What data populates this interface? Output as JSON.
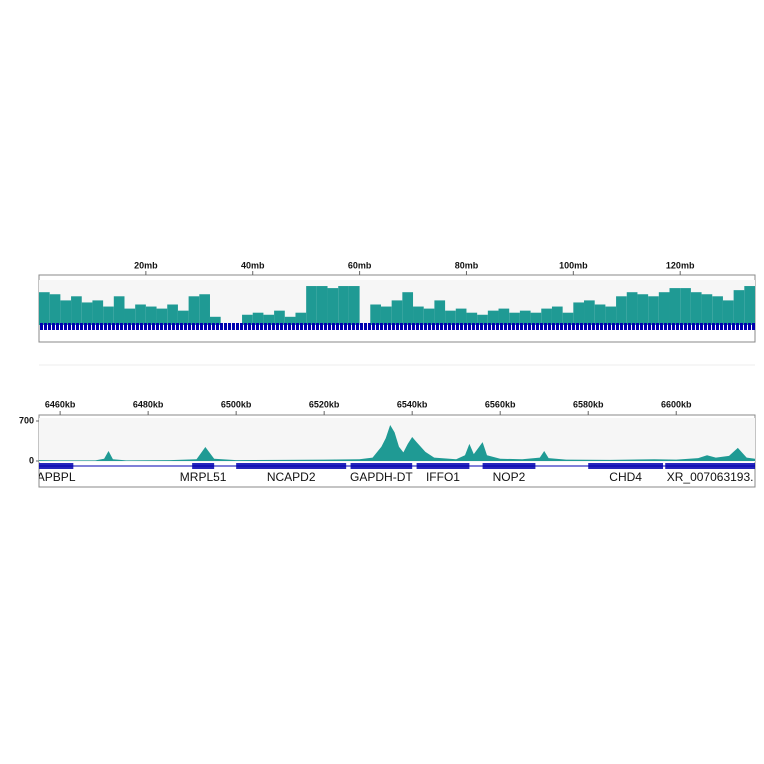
{
  "chart_data": [
    {
      "type": "histogram",
      "bins": [
        0,
        2,
        4,
        6,
        8,
        10,
        12,
        14,
        16,
        18,
        20,
        22,
        24,
        26,
        28,
        30,
        32,
        34,
        36,
        38,
        40,
        42,
        44,
        46,
        48,
        50,
        52,
        54,
        56,
        58,
        60,
        62,
        64,
        66,
        68,
        70,
        72,
        74,
        76,
        78,
        80,
        82,
        84,
        86,
        88,
        90,
        92,
        94,
        96,
        98,
        100,
        102,
        104,
        106,
        108,
        110,
        112,
        114,
        116,
        118,
        120,
        122,
        124,
        126,
        128,
        130,
        132,
        134
      ],
      "values": [
        80,
        75,
        60,
        70,
        55,
        60,
        45,
        70,
        40,
        50,
        45,
        40,
        50,
        35,
        70,
        75,
        20,
        0,
        0,
        25,
        30,
        25,
        35,
        20,
        30,
        95,
        95,
        90,
        95,
        95,
        0,
        50,
        45,
        60,
        80,
        45,
        40,
        60,
        35,
        40,
        30,
        25,
        35,
        40,
        30,
        35,
        30,
        40,
        45,
        30,
        55,
        60,
        50,
        45,
        70,
        80,
        75,
        70,
        80,
        90,
        90,
        80,
        75,
        70,
        60,
        85,
        95
      ],
      "color": "#1f9a94",
      "xlim": [
        0,
        134
      ],
      "xticks": [
        {
          "value": 20,
          "label": "20mb"
        },
        {
          "value": 40,
          "label": "40mb"
        },
        {
          "value": 60,
          "label": "60mb"
        },
        {
          "value": 80,
          "label": "80mb"
        },
        {
          "value": 100,
          "label": "100mb"
        },
        {
          "value": 120,
          "label": "120mb"
        }
      ],
      "ylim": [
        0,
        100
      ],
      "gene_color": "#0000b0"
    },
    {
      "type": "area",
      "x": [
        6455.2,
        6460,
        6468,
        6470,
        6471,
        6472,
        6475,
        6485,
        6491,
        6493,
        6495,
        6500,
        6510,
        6520,
        6528,
        6531,
        6533,
        6534,
        6535,
        6536,
        6537,
        6538,
        6539,
        6540,
        6541,
        6543,
        6545,
        6550,
        6552,
        6553,
        6554,
        6556,
        6557,
        6560,
        6565,
        6569,
        6570,
        6571,
        6575,
        6585,
        6595,
        6600,
        6605,
        6607,
        6609,
        6612,
        6614,
        6616,
        6617.9
      ],
      "values": [
        15,
        10,
        12,
        40,
        175,
        30,
        10,
        15,
        30,
        245,
        40,
        15,
        20,
        25,
        30,
        60,
        250,
        400,
        630,
        500,
        250,
        150,
        300,
        420,
        330,
        160,
        60,
        30,
        100,
        300,
        120,
        330,
        100,
        40,
        30,
        60,
        175,
        50,
        25,
        20,
        30,
        25,
        50,
        100,
        60,
        90,
        230,
        60,
        40
      ],
      "color": "#1f9a94",
      "xlim": [
        6455.2,
        6617.9
      ],
      "xticks": [
        {
          "value": 6460,
          "label": "6460kb"
        },
        {
          "value": 6480,
          "label": "6480kb"
        },
        {
          "value": 6500,
          "label": "6500kb"
        },
        {
          "value": 6520,
          "label": "6520kb"
        },
        {
          "value": 6540,
          "label": "6540kb"
        },
        {
          "value": 6560,
          "label": "6560kb"
        },
        {
          "value": 6580,
          "label": "6580kb"
        },
        {
          "value": 6600,
          "label": "6600kb"
        }
      ],
      "ylim": [
        0,
        700
      ],
      "yticks": [
        0,
        700
      ],
      "gene_color": "#0000b0",
      "genes": [
        {
          "name": "APBPL",
          "start": 6455.2,
          "end": 6463
        },
        {
          "name": "MRPL51",
          "start": 6490,
          "end": 6495
        },
        {
          "name": "NCAPD2",
          "start": 6500,
          "end": 6525
        },
        {
          "name": "GAPDH-DT",
          "start": 6526,
          "end": 6540
        },
        {
          "name": "IFFO1",
          "start": 6541,
          "end": 6553
        },
        {
          "name": "NOP2",
          "start": 6556,
          "end": 6568
        },
        {
          "name": "CHD4",
          "start": 6580,
          "end": 6597
        },
        {
          "name": "XR_007063193.",
          "start": 6597.5,
          "end": 6617.9
        }
      ]
    }
  ]
}
